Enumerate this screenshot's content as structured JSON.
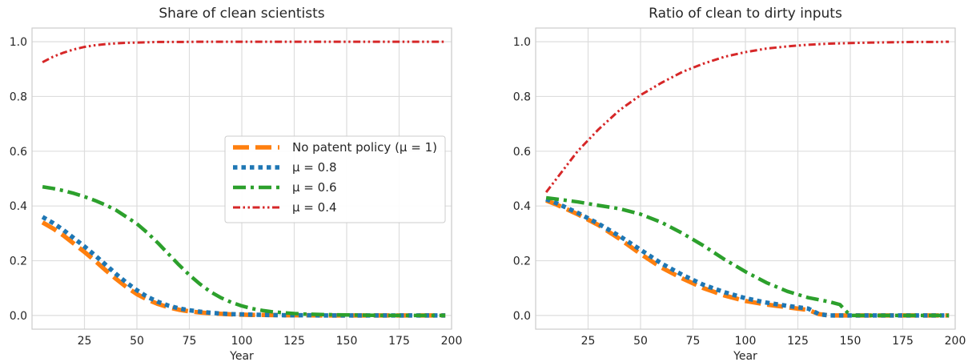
{
  "chart_data": [
    {
      "type": "line",
      "title": "Share of clean scientists",
      "xlabel": "Year",
      "ylabel": "",
      "xlim": [
        0,
        200
      ],
      "ylim": [
        -0.05,
        1.05
      ],
      "xticks": [
        25,
        50,
        75,
        100,
        125,
        150,
        175,
        200
      ],
      "yticks": [
        0.0,
        0.2,
        0.4,
        0.6,
        0.8,
        1.0
      ],
      "ytick_labels": [
        "0.0",
        "0.2",
        "0.4",
        "0.6",
        "0.8",
        "1.0"
      ],
      "grid": true,
      "legend": {
        "placement": "center-right",
        "entries": [
          "No patent policy (μ = 1)",
          "μ = 0.8",
          "μ = 0.6",
          "μ = 0.4"
        ]
      },
      "series": [
        {
          "name": "No patent policy (μ = 1)",
          "color": "#ff7f0e",
          "style": "dashed",
          "x": [
            5,
            10,
            15,
            20,
            25,
            30,
            35,
            40,
            45,
            50,
            55,
            60,
            65,
            70,
            75,
            80,
            85,
            90,
            95,
            100,
            105,
            110,
            120,
            130,
            140,
            150,
            160,
            170,
            180,
            190,
            197
          ],
          "y": [
            0.34,
            0.318,
            0.292,
            0.262,
            0.232,
            0.2,
            0.166,
            0.134,
            0.104,
            0.078,
            0.058,
            0.042,
            0.03,
            0.021,
            0.015,
            0.011,
            0.008,
            0.006,
            0.004,
            0.003,
            0.002,
            0.002,
            0.001,
            0.001,
            0.0,
            0.0,
            0.0,
            0.0,
            0.0,
            0.0,
            0.0
          ]
        },
        {
          "name": "μ = 0.8",
          "color": "#1f77b4",
          "style": "dotted",
          "x": [
            5,
            10,
            15,
            20,
            25,
            30,
            35,
            40,
            45,
            50,
            55,
            60,
            65,
            70,
            75,
            80,
            85,
            90,
            95,
            100,
            105,
            110,
            120,
            130,
            140,
            150,
            160,
            170,
            180,
            190,
            197
          ],
          "y": [
            0.36,
            0.338,
            0.312,
            0.282,
            0.252,
            0.22,
            0.186,
            0.152,
            0.12,
            0.092,
            0.068,
            0.05,
            0.036,
            0.026,
            0.019,
            0.014,
            0.01,
            0.007,
            0.005,
            0.004,
            0.003,
            0.002,
            0.001,
            0.001,
            0.0,
            0.0,
            0.0,
            0.0,
            0.0,
            0.0,
            0.0
          ]
        },
        {
          "name": "μ = 0.6",
          "color": "#2ca02c",
          "style": "dashdot",
          "x": [
            5,
            10,
            15,
            20,
            25,
            30,
            35,
            40,
            45,
            50,
            55,
            60,
            65,
            70,
            75,
            80,
            85,
            90,
            95,
            100,
            105,
            110,
            115,
            120,
            125,
            130,
            140,
            150,
            160,
            170,
            180,
            190,
            197
          ],
          "y": [
            0.47,
            0.464,
            0.456,
            0.446,
            0.434,
            0.42,
            0.404,
            0.385,
            0.36,
            0.335,
            0.302,
            0.265,
            0.225,
            0.185,
            0.148,
            0.115,
            0.087,
            0.065,
            0.048,
            0.035,
            0.025,
            0.018,
            0.013,
            0.01,
            0.007,
            0.005,
            0.003,
            0.002,
            0.001,
            0.0,
            0.0,
            0.0,
            0.0
          ]
        },
        {
          "name": "μ = 0.4",
          "color": "#d62728",
          "style": "dashdotdot",
          "x": [
            5,
            10,
            15,
            20,
            25,
            30,
            35,
            40,
            45,
            50,
            55,
            60,
            70,
            80,
            90,
            100,
            120,
            140,
            160,
            180,
            197
          ],
          "y": [
            0.925,
            0.945,
            0.96,
            0.972,
            0.981,
            0.987,
            0.991,
            0.994,
            0.996,
            0.997,
            0.998,
            0.999,
            0.999,
            1.0,
            1.0,
            1.0,
            1.0,
            1.0,
            1.0,
            1.0,
            1.0
          ]
        }
      ]
    },
    {
      "type": "line",
      "title": "Ratio of clean to dirty inputs",
      "xlabel": "Year",
      "ylabel": "",
      "xlim": [
        0,
        200
      ],
      "ylim": [
        -0.05,
        1.05
      ],
      "xticks": [
        25,
        50,
        75,
        100,
        125,
        150,
        175,
        200
      ],
      "yticks": [
        0.0,
        0.2,
        0.4,
        0.6,
        0.8,
        1.0
      ],
      "ytick_labels": [
        "0.0",
        "0.2",
        "0.4",
        "0.6",
        "0.8",
        "1.0"
      ],
      "grid": true,
      "series": [
        {
          "name": "No patent policy (μ = 1)",
          "color": "#ff7f0e",
          "style": "dashed",
          "x": [
            5,
            10,
            20,
            30,
            40,
            50,
            60,
            70,
            80,
            90,
            100,
            110,
            120,
            130,
            135,
            140,
            150,
            160,
            170,
            180,
            190,
            197
          ],
          "y": [
            0.42,
            0.405,
            0.37,
            0.33,
            0.28,
            0.225,
            0.175,
            0.135,
            0.1,
            0.073,
            0.053,
            0.04,
            0.03,
            0.02,
            0.005,
            0.0,
            0.0,
            0.0,
            0.0,
            0.0,
            0.0,
            0.0
          ]
        },
        {
          "name": "μ = 0.8",
          "color": "#1f77b4",
          "style": "dotted",
          "x": [
            5,
            10,
            20,
            30,
            40,
            50,
            60,
            70,
            80,
            90,
            100,
            110,
            120,
            130,
            135,
            140,
            150,
            160,
            170,
            180,
            190,
            197
          ],
          "y": [
            0.425,
            0.41,
            0.375,
            0.335,
            0.29,
            0.24,
            0.19,
            0.148,
            0.112,
            0.085,
            0.063,
            0.047,
            0.035,
            0.025,
            0.005,
            0.0,
            0.0,
            0.0,
            0.0,
            0.0,
            0.0,
            0.0
          ]
        },
        {
          "name": "μ = 0.6",
          "color": "#2ca02c",
          "style": "dashdot",
          "x": [
            5,
            10,
            20,
            30,
            40,
            50,
            60,
            70,
            80,
            90,
            100,
            110,
            120,
            130,
            140,
            145,
            150,
            160,
            170,
            180,
            190,
            197
          ],
          "y": [
            0.43,
            0.425,
            0.415,
            0.402,
            0.39,
            0.37,
            0.34,
            0.3,
            0.255,
            0.205,
            0.16,
            0.12,
            0.088,
            0.065,
            0.05,
            0.04,
            0.0,
            0.0,
            0.0,
            0.0,
            0.0,
            0.0
          ]
        },
        {
          "name": "μ = 0.4",
          "color": "#d62728",
          "style": "dashdotdot",
          "x": [
            5,
            10,
            20,
            30,
            40,
            50,
            60,
            70,
            80,
            90,
            100,
            110,
            120,
            130,
            140,
            150,
            160,
            170,
            180,
            190,
            197
          ],
          "y": [
            0.45,
            0.5,
            0.6,
            0.68,
            0.75,
            0.805,
            0.85,
            0.89,
            0.92,
            0.945,
            0.962,
            0.975,
            0.983,
            0.989,
            0.993,
            0.995,
            0.997,
            0.998,
            0.999,
            0.999,
            1.0
          ]
        }
      ]
    }
  ]
}
